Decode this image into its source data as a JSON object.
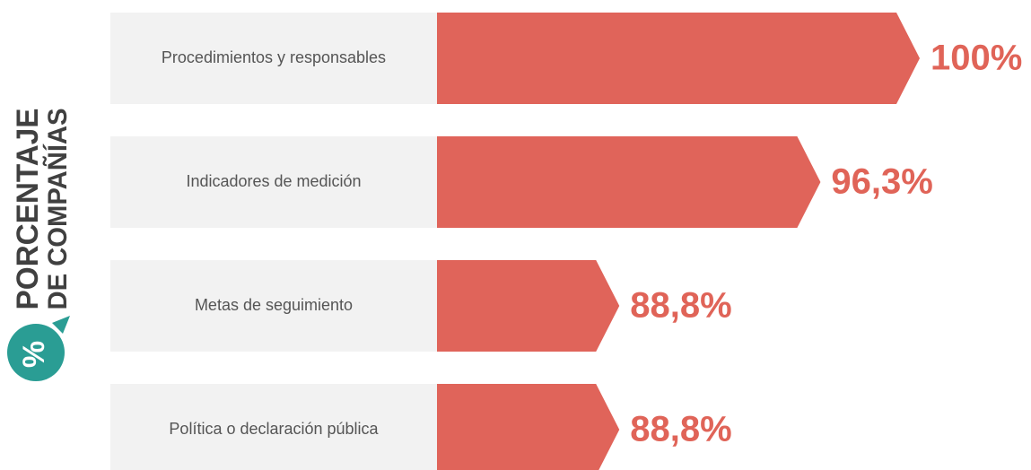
{
  "chart_data": {
    "type": "bar",
    "orientation": "horizontal",
    "title": "PORCENTAJE",
    "subtitle": "DE COMPAÑÍAS",
    "icon_label": "%",
    "categories": [
      "Procedimientos y responsables",
      "Indicadores de medición",
      "Metas de seguimiento",
      "Política o declaración pública"
    ],
    "values": [
      100,
      96.3,
      88.8,
      88.8
    ],
    "value_labels": [
      "100%",
      "96,3%",
      "88,8%",
      "88,8%"
    ],
    "color": "#e0645a",
    "label_color": "#e06458",
    "icon_color": "#2a9d94",
    "xlim": [
      82,
      100
    ]
  }
}
